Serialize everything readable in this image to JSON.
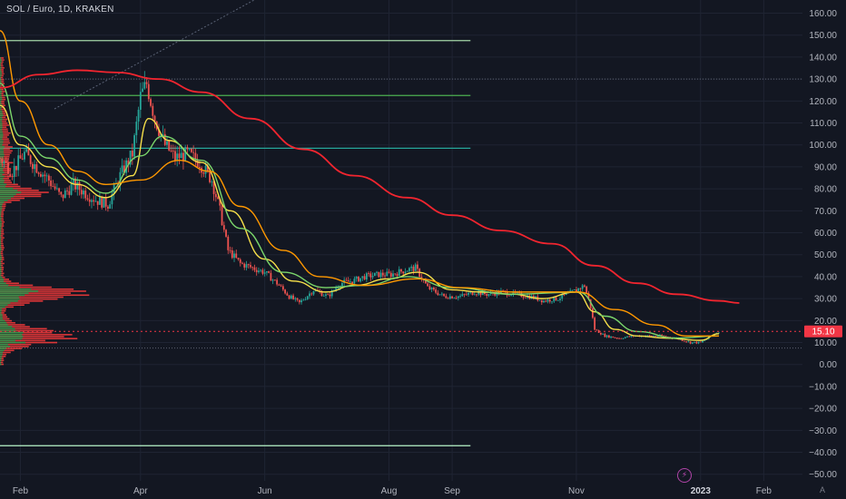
{
  "header": {
    "symbol_title": "SOL / Euro, 1D, KRAKEN"
  },
  "footer": {
    "event_icon": "lightning-icon",
    "log_mode_label": "A"
  },
  "chart_data": {
    "type": "candlestick",
    "title": "SOL / Euro, 1D, KRAKEN",
    "x_axis": {
      "type": "date",
      "ticks": [
        "Feb",
        "Apr",
        "Jun",
        "Aug",
        "Sep",
        "Nov",
        "2023",
        "Feb"
      ],
      "tick_dates": [
        "2022-02-01",
        "2022-04-01",
        "2022-06-01",
        "2022-08-01",
        "2022-09-01",
        "2022-11-01",
        "2023-01-01",
        "2023-02-01"
      ],
      "range": [
        "2022-01-22",
        "2023-02-20"
      ]
    },
    "y_axis": {
      "range": [
        -53,
        166
      ],
      "ticks": [
        160,
        150,
        140,
        130,
        120,
        110,
        100,
        90,
        80,
        70,
        60,
        50,
        40,
        30,
        20,
        10,
        0,
        -10,
        -20,
        -30,
        -40,
        -50
      ],
      "tick_labels": [
        "160.00",
        "150.00",
        "140.00",
        "130.00",
        "120.00",
        "110.00",
        "100.00",
        "90.00",
        "80.00",
        "70.00",
        "60.00",
        "50.00",
        "40.00",
        "30.00",
        "20.00",
        "10.00",
        "0.00",
        "−10.00",
        "−20.00",
        "−30.00",
        "−40.00",
        "−50.00"
      ]
    },
    "last_price": {
      "value": 15.1,
      "label": "15.10",
      "color": "#f23645"
    },
    "dotted_levels": [
      130.0,
      7.5
    ],
    "horizontal_levels": [
      {
        "value": 147.5,
        "color": "#a5d6a7",
        "until": "2022-09-10"
      },
      {
        "value": 122.5,
        "color": "#4caf50",
        "until": "2022-09-10"
      },
      {
        "value": 98.5,
        "color": "#26a69a",
        "until": "2022-09-10"
      },
      {
        "value": -37.0,
        "color": "#b9f6ca",
        "until": "2022-09-10"
      }
    ],
    "price_points": [
      [
        "2022-01-22",
        94
      ],
      [
        "2022-01-28",
        88
      ],
      [
        "2022-02-03",
        96
      ],
      [
        "2022-02-09",
        90
      ],
      [
        "2022-02-15",
        84
      ],
      [
        "2022-02-21",
        76
      ],
      [
        "2022-02-27",
        82
      ],
      [
        "2022-03-05",
        78
      ],
      [
        "2022-03-10",
        75
      ],
      [
        "2022-03-16",
        73
      ],
      [
        "2022-03-22",
        86
      ],
      [
        "2022-03-28",
        96
      ],
      [
        "2022-04-01",
        122
      ],
      [
        "2022-04-04",
        128
      ],
      [
        "2022-04-08",
        112
      ],
      [
        "2022-04-13",
        100
      ],
      [
        "2022-04-18",
        94
      ],
      [
        "2022-04-24",
        96
      ],
      [
        "2022-04-30",
        92
      ],
      [
        "2022-05-06",
        84
      ],
      [
        "2022-05-10",
        70
      ],
      [
        "2022-05-14",
        52
      ],
      [
        "2022-05-20",
        46
      ],
      [
        "2022-05-26",
        44
      ],
      [
        "2022-06-01",
        42
      ],
      [
        "2022-06-07",
        37
      ],
      [
        "2022-06-13",
        31
      ],
      [
        "2022-06-18",
        28
      ],
      [
        "2022-06-25",
        34
      ],
      [
        "2022-07-02",
        31
      ],
      [
        "2022-07-08",
        37
      ],
      [
        "2022-07-14",
        38
      ],
      [
        "2022-07-20",
        40
      ],
      [
        "2022-07-27",
        41
      ],
      [
        "2022-08-02",
        41
      ],
      [
        "2022-08-09",
        43
      ],
      [
        "2022-08-14",
        44
      ],
      [
        "2022-08-20",
        35
      ],
      [
        "2022-08-28",
        31
      ],
      [
        "2022-09-05",
        31
      ],
      [
        "2022-09-12",
        33
      ],
      [
        "2022-09-18",
        32
      ],
      [
        "2022-09-25",
        33
      ],
      [
        "2022-10-02",
        32
      ],
      [
        "2022-10-09",
        31
      ],
      [
        "2022-10-16",
        29
      ],
      [
        "2022-10-23",
        30
      ],
      [
        "2022-10-30",
        33
      ],
      [
        "2022-11-05",
        36
      ],
      [
        "2022-11-08",
        26
      ],
      [
        "2022-11-10",
        16
      ],
      [
        "2022-11-15",
        13
      ],
      [
        "2022-11-22",
        12
      ],
      [
        "2022-11-29",
        13
      ],
      [
        "2022-12-06",
        13
      ],
      [
        "2022-12-13",
        13
      ],
      [
        "2022-12-20",
        12
      ],
      [
        "2022-12-27",
        10
      ],
      [
        "2023-01-01",
        10
      ],
      [
        "2023-01-06",
        13
      ],
      [
        "2023-01-10",
        15
      ]
    ],
    "moving_averages": [
      {
        "color": "#f7e04a",
        "points": [
          [
            "2022-01-22",
            118
          ],
          [
            "2022-02-01",
            100
          ],
          [
            "2022-02-15",
            90
          ],
          [
            "2022-03-01",
            82
          ],
          [
            "2022-03-15",
            76
          ],
          [
            "2022-03-28",
            86
          ],
          [
            "2022-04-05",
            112
          ],
          [
            "2022-04-15",
            102
          ],
          [
            "2022-05-01",
            92
          ],
          [
            "2022-05-15",
            70
          ],
          [
            "2022-06-01",
            48
          ],
          [
            "2022-06-15",
            38
          ],
          [
            "2022-07-01",
            33
          ],
          [
            "2022-07-15",
            36
          ],
          [
            "2022-08-01",
            39
          ],
          [
            "2022-08-15",
            42
          ],
          [
            "2022-09-01",
            34
          ],
          [
            "2022-09-15",
            33
          ],
          [
            "2022-10-01",
            32
          ],
          [
            "2022-10-15",
            30
          ],
          [
            "2022-11-01",
            33
          ],
          [
            "2022-11-10",
            24
          ],
          [
            "2022-11-20",
            16
          ],
          [
            "2022-12-01",
            13
          ],
          [
            "2022-12-15",
            12
          ],
          [
            "2023-01-01",
            11
          ],
          [
            "2023-01-10",
            14
          ]
        ]
      },
      {
        "color": "#7bd66b",
        "points": [
          [
            "2022-01-22",
            128
          ],
          [
            "2022-02-01",
            104
          ],
          [
            "2022-02-15",
            94
          ],
          [
            "2022-03-01",
            84
          ],
          [
            "2022-03-15",
            78
          ],
          [
            "2022-04-01",
            95
          ],
          [
            "2022-04-12",
            104
          ],
          [
            "2022-05-01",
            93
          ],
          [
            "2022-05-20",
            62
          ],
          [
            "2022-06-10",
            42
          ],
          [
            "2022-07-01",
            35
          ],
          [
            "2022-07-20",
            36
          ],
          [
            "2022-08-10",
            40
          ],
          [
            "2022-09-01",
            35
          ],
          [
            "2022-10-01",
            32
          ],
          [
            "2022-11-02",
            33
          ],
          [
            "2022-11-15",
            22
          ],
          [
            "2022-12-01",
            15
          ],
          [
            "2022-12-20",
            12
          ],
          [
            "2023-01-10",
            13
          ]
        ]
      },
      {
        "color": "#ff9800",
        "points": [
          [
            "2022-01-22",
            152
          ],
          [
            "2022-02-01",
            120
          ],
          [
            "2022-02-15",
            100
          ],
          [
            "2022-03-01",
            88
          ],
          [
            "2022-03-15",
            82
          ],
          [
            "2022-04-01",
            84
          ],
          [
            "2022-04-20",
            93
          ],
          [
            "2022-05-05",
            88
          ],
          [
            "2022-05-20",
            72
          ],
          [
            "2022-06-10",
            52
          ],
          [
            "2022-06-28",
            40
          ],
          [
            "2022-07-20",
            36
          ],
          [
            "2022-08-15",
            39
          ],
          [
            "2022-09-05",
            35
          ],
          [
            "2022-10-01",
            33
          ],
          [
            "2022-11-02",
            33
          ],
          [
            "2022-11-20",
            25
          ],
          [
            "2022-12-10",
            18
          ],
          [
            "2022-12-25",
            13
          ],
          [
            "2023-01-10",
            13
          ]
        ]
      },
      {
        "color": "#f2252f",
        "points": [
          [
            "2022-01-22",
            126
          ],
          [
            "2022-02-10",
            132
          ],
          [
            "2022-03-01",
            134
          ],
          [
            "2022-03-20",
            133
          ],
          [
            "2022-04-10",
            130
          ],
          [
            "2022-05-01",
            124
          ],
          [
            "2022-05-25",
            112
          ],
          [
            "2022-06-20",
            98
          ],
          [
            "2022-07-15",
            86
          ],
          [
            "2022-08-10",
            76
          ],
          [
            "2022-09-01",
            68
          ],
          [
            "2022-09-25",
            61
          ],
          [
            "2022-10-20",
            55
          ],
          [
            "2022-11-10",
            45
          ],
          [
            "2022-12-01",
            37
          ],
          [
            "2022-12-20",
            32
          ],
          [
            "2023-01-10",
            29
          ],
          [
            "2023-01-20",
            28
          ]
        ]
      }
    ],
    "colors": {
      "background": "#131722",
      "up": "#26a69a",
      "down": "#ef5350",
      "grid": "#1f2433",
      "axis_text": "#b2b5be",
      "volume_profile_down": "#ff3b3b",
      "volume_profile_up": "#2e9e4f"
    }
  }
}
